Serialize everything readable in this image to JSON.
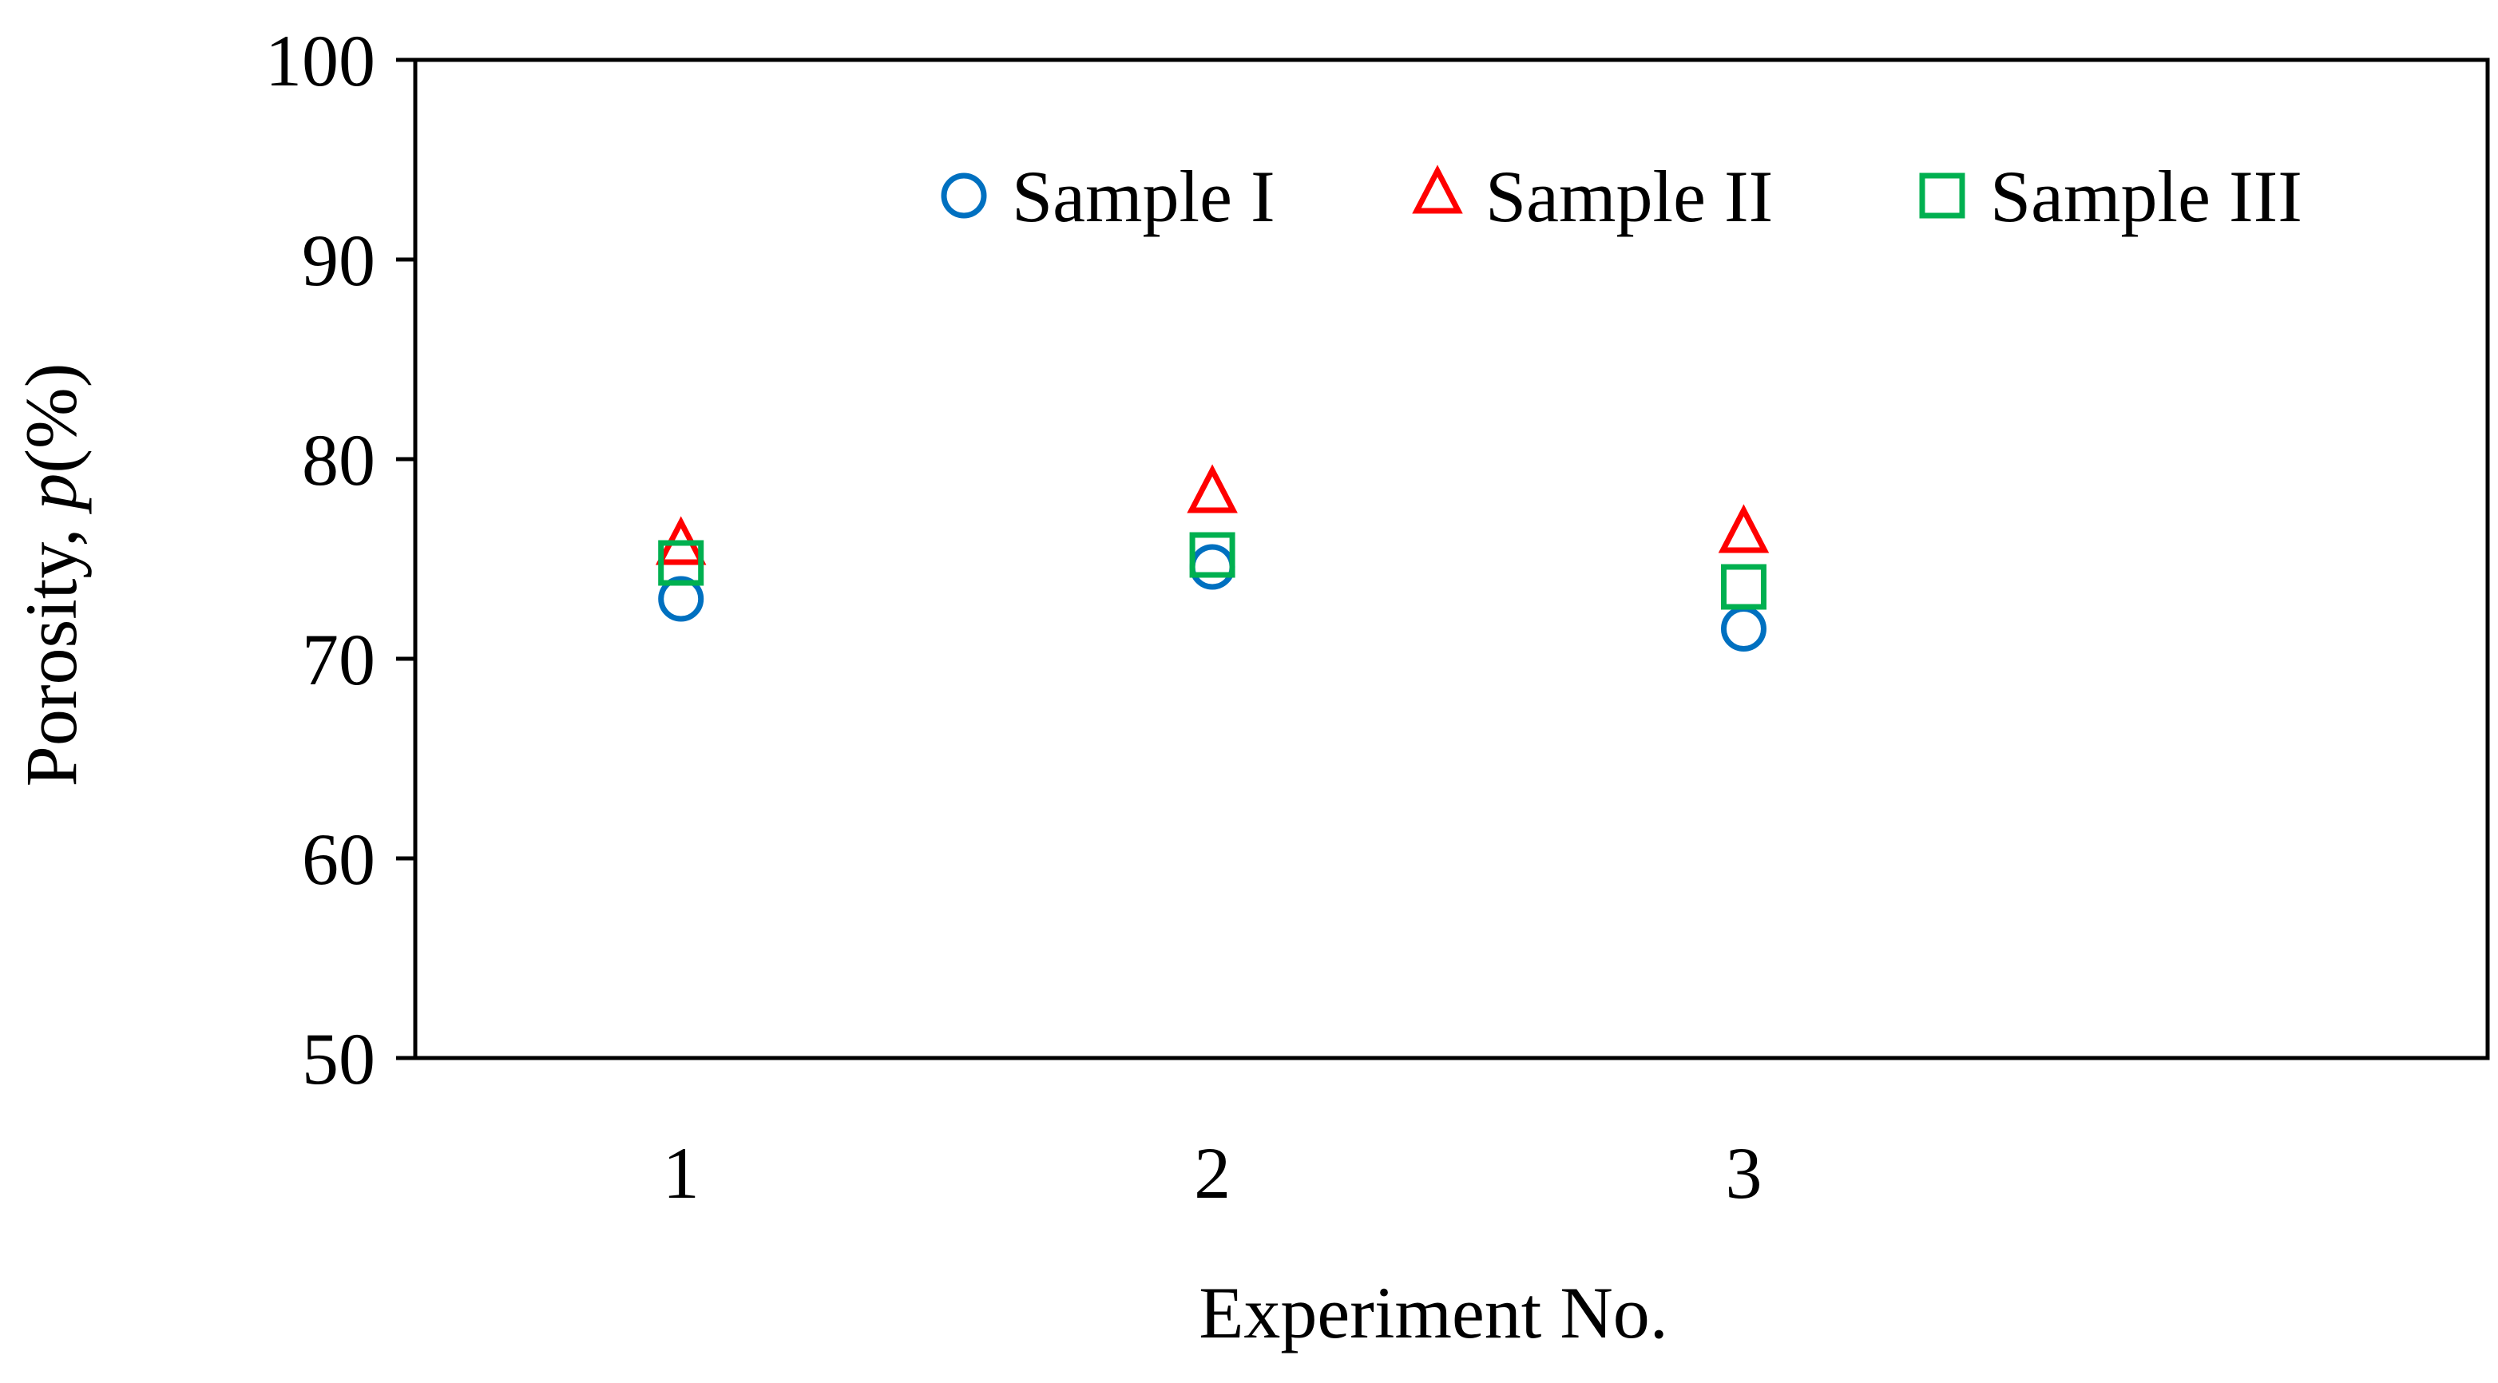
{
  "chart_data": {
    "type": "scatter",
    "title": "",
    "xlabel": "Experiment No.",
    "ylabel_prefix": "Porosity, ",
    "ylabel_var": "p",
    "ylabel_suffix": "(%)",
    "x_categories": [
      "1",
      "2",
      "3"
    ],
    "xlim": [
      0.5,
      4.4
    ],
    "ylim": [
      50,
      100
    ],
    "y_ticks": [
      50,
      60,
      70,
      80,
      90,
      100
    ],
    "grid": false,
    "legend_position": "top-right",
    "series": [
      {
        "name": "Sample I",
        "marker": "circle",
        "color": "#0070C0",
        "x": [
          1,
          2,
          3
        ],
        "y": [
          73.0,
          74.6,
          71.5
        ]
      },
      {
        "name": "Sample II",
        "marker": "triangle",
        "color": "#FF0000",
        "x": [
          1,
          2,
          3
        ],
        "y": [
          75.6,
          78.2,
          76.2
        ]
      },
      {
        "name": "Sample III",
        "marker": "square",
        "color": "#00B050",
        "x": [
          1,
          2,
          3
        ],
        "y": [
          74.8,
          75.2,
          73.6
        ]
      }
    ]
  }
}
